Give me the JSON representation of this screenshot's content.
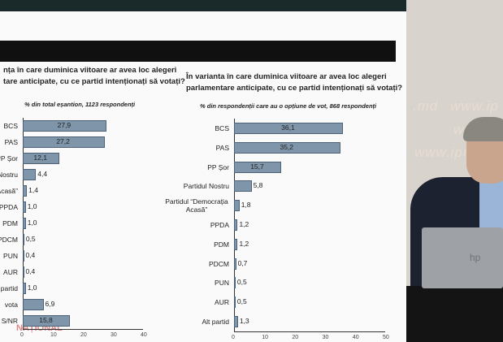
{
  "left_chart": {
    "title_lines": [
      "nța în care duminica viitoare ar avea loc alegeri",
      "tare anticipate, cu ce partid intenționați să votați?"
    ],
    "subtitle": "% din total eșantion, 1123 respondenți"
  },
  "right_chart": {
    "title_lines": [
      "În varianta în care duminica viitoare ar avea loc alegeri",
      "parlamentare anticipate, cu ce partid intenționați să votați?"
    ],
    "subtitle": "% din respondenții care au o opțiune de vot, 868 respondenți"
  },
  "chart_data": [
    {
      "type": "bar",
      "orientation": "horizontal",
      "title": "nța în care duminica viitoare ar avea loc alegeri tare anticipate, cu ce partid intenționați să votați?",
      "subtitle": "% din total eșantion, 1123 respondenți",
      "categories": [
        "BCS",
        "PAS",
        "PP Șor",
        "Nostru",
        "Acasă”",
        "PPDA",
        "PDM",
        "PDCM",
        "PUN",
        "AUR",
        "partid",
        "vota",
        "S/NR"
      ],
      "values": [
        27.9,
        27.2,
        12.1,
        4.4,
        1.4,
        1.0,
        1.0,
        0.5,
        0.4,
        0.4,
        1.0,
        6.9,
        15.8
      ],
      "value_labels": [
        "27,9",
        "27,2",
        "12,1",
        "4,4",
        "1,4",
        "1,0",
        "1,0",
        "0,5",
        "0,4",
        "0,4",
        "1,0",
        "6,9",
        "15,8"
      ],
      "xlim": [
        0,
        40
      ],
      "xticks": [
        "0",
        "10",
        "20",
        "30",
        "40"
      ]
    },
    {
      "type": "bar",
      "orientation": "horizontal",
      "title": "În varianta în care duminica viitoare ar avea loc alegeri parlamentare anticipate, cu ce partid intenționați să votați?",
      "subtitle": "% din respondenții care au o opțiune de vot, 868 respondenți",
      "categories": [
        "BCS",
        "PAS",
        "PP Șor",
        "Partidul Nostru",
        "Partidul “Democrația Acasă”",
        "PPDA",
        "PDM",
        "PDCM",
        "PUN",
        "AUR",
        "Alt partid"
      ],
      "values": [
        36.1,
        35.2,
        15.7,
        5.8,
        1.8,
        1.2,
        1.2,
        0.7,
        0.5,
        0.5,
        1.3
      ],
      "value_labels": [
        "36,1",
        "35,2",
        "15,7",
        "5,8",
        "1,8",
        "1,2",
        "1,2",
        "0,7",
        "0,5",
        "0,5",
        "1,3"
      ],
      "xlim": [
        0,
        50
      ],
      "xticks": [
        "0",
        "10",
        "20",
        "30",
        "40",
        "50"
      ]
    }
  ],
  "background": {
    "wall_texts": [
      ".md",
      "www.ip",
      "www.ip",
      "www.ipn.m"
    ],
    "watermark": "NAȚIONAL"
  },
  "colors": {
    "bar": "#7e95aa",
    "bar_border": "#4d6276",
    "wall": "#d8d3cc"
  }
}
